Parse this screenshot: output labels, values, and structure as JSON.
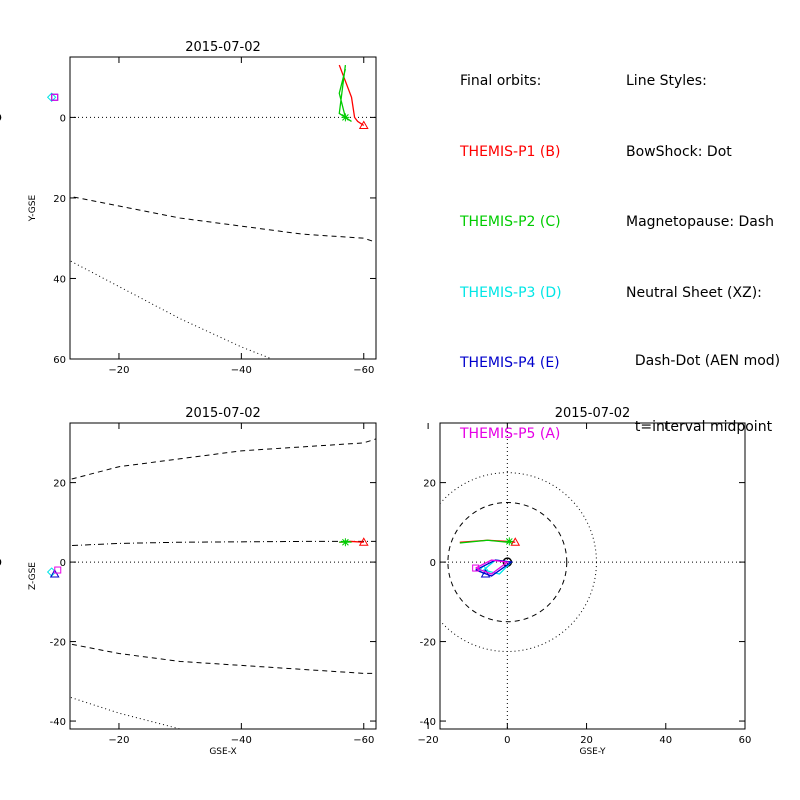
{
  "colors": {
    "P1": "#ff0000",
    "P2": "#00cc00",
    "P3": "#00e6e6",
    "P4": "#0000cc",
    "P5": "#e600e6"
  },
  "legend": {
    "orbits_title": "Final orbits:",
    "orbits": [
      {
        "label": "THEMIS-P1 (B)",
        "color": "#ff0000"
      },
      {
        "label": "THEMIS-P2 (C)",
        "color": "#00cc00"
      },
      {
        "label": "THEMIS-P3 (D)",
        "color": "#00e6e6"
      },
      {
        "label": "THEMIS-P4 (E)",
        "color": "#0000cc"
      },
      {
        "label": "THEMIS-P5 (A)",
        "color": "#e600e6"
      }
    ],
    "styles_title": "Line Styles:",
    "styles": [
      "BowShock: Dot",
      "Magnetopause: Dash",
      "Neutral Sheet (XZ):",
      "  Dash-Dot (AEN mod)",
      "  t=interval midpoint"
    ]
  },
  "chart_data": [
    {
      "type": "line",
      "title": "2015-07-02",
      "xlabel": "",
      "ylabel": "Y-GSE",
      "xlim": [
        -12,
        -62
      ],
      "ylim": [
        -15,
        60
      ],
      "xticks": [
        0,
        -20,
        -40,
        -60
      ],
      "yticks": [
        0,
        20,
        40,
        60
      ],
      "boundaries": [
        {
          "style": "dot",
          "x": [
            -10,
            -5,
            0,
            -10,
            -20,
            -30,
            -40,
            -45
          ],
          "y": [
            -15,
            -8,
            27,
            34,
            42,
            50,
            57,
            60
          ]
        },
        {
          "style": "dash",
          "x": [
            -10,
            -7,
            -1,
            0,
            -10,
            -20,
            -30,
            -40,
            -50,
            -60,
            -62
          ],
          "y": [
            -15,
            -6,
            14,
            15,
            19,
            22,
            25,
            27,
            29,
            30,
            31
          ]
        },
        {
          "style": "dot",
          "x": [
            0,
            0
          ],
          "y": [
            -15,
            60
          ]
        },
        {
          "style": "dot",
          "x": [
            -12,
            -62
          ],
          "y": [
            0,
            0
          ]
        }
      ],
      "series": [
        {
          "name": "P1",
          "color": "#ff0000",
          "x": [
            -56,
            -58,
            -58.5,
            -59,
            -60
          ],
          "y": [
            -13,
            -5,
            0,
            1,
            2
          ],
          "marker": "triangle",
          "end": [
            -60,
            2
          ]
        },
        {
          "name": "P2",
          "color": "#00cc00",
          "x": [
            -57,
            -56,
            -57,
            -58,
            -56,
            -57
          ],
          "y": [
            -12,
            -6,
            0,
            1,
            -1,
            -13
          ],
          "marker": "star",
          "end": [
            -57,
            0
          ]
        },
        {
          "name": "P3",
          "color": "#00e6e6",
          "x": [
            -9,
            -7,
            0,
            -6,
            -9
          ],
          "y": [
            -5,
            -8,
            0,
            4,
            -5
          ],
          "marker": "diamond",
          "end": [
            -9,
            -5
          ]
        },
        {
          "name": "P4",
          "color": "#0000cc",
          "x": [
            -9,
            -5,
            1,
            -3,
            -9
          ],
          "y": [
            -6,
            -9,
            0,
            5,
            -6
          ],
          "marker": "square",
          "end": [
            -9.5,
            -5
          ]
        },
        {
          "name": "P5",
          "color": "#e600e6",
          "x": [
            -9.5,
            -7,
            0,
            -6,
            -9.5
          ],
          "y": [
            -5,
            -8,
            0,
            4,
            -5
          ],
          "marker": "square",
          "end": [
            -9.5,
            -5
          ]
        }
      ]
    },
    {
      "type": "line",
      "title": "2015-07-02",
      "xlabel": "GSE-X",
      "ylabel": "Z-GSE",
      "xlim": [
        -12,
        -62
      ],
      "ylim": [
        35,
        -42
      ],
      "xticks": [
        0,
        -20,
        -40,
        -60
      ],
      "yticks": [
        20,
        0,
        -20,
        -40
      ],
      "boundaries": [
        {
          "style": "dot",
          "x": [
            -12,
            -5,
            0,
            5,
            7
          ],
          "y": [
            5,
            20,
            27,
            33,
            35
          ]
        },
        {
          "style": "dot",
          "x": [
            -12,
            -5,
            0,
            -10,
            -20,
            -30
          ],
          "y": [
            -5,
            -22,
            -27,
            -33,
            -38,
            -42
          ]
        },
        {
          "style": "dash",
          "x": [
            -10,
            -5,
            0,
            -10,
            -20,
            -30,
            -40,
            -50,
            -60,
            -62
          ],
          "y": [
            5,
            12,
            15,
            20,
            24,
            26,
            28,
            29,
            30,
            31
          ]
        },
        {
          "style": "dash",
          "x": [
            -10,
            -5,
            0,
            -10,
            -20,
            -30,
            -40,
            -50,
            -60,
            -62
          ],
          "y": [
            -5,
            -12,
            -15,
            -20,
            -23,
            -25,
            -26,
            -27,
            -28,
            -28
          ]
        },
        {
          "style": "dashdot",
          "x": [
            0,
            -5,
            -10,
            -20,
            -30,
            -40,
            -50,
            -60,
            -62
          ],
          "y": [
            0,
            3,
            4,
            4.7,
            5,
            5.1,
            5.2,
            5.2,
            5.2
          ]
        },
        {
          "style": "dot",
          "x": [
            0,
            0
          ],
          "y": [
            35,
            -42
          ]
        },
        {
          "style": "dot",
          "x": [
            -12,
            -62
          ],
          "y": [
            0,
            0
          ]
        }
      ],
      "series": [
        {
          "name": "P1",
          "color": "#ff0000",
          "x": [
            -56,
            -58,
            -60
          ],
          "y": [
            5,
            5.2,
            5
          ],
          "marker": "triangle",
          "end": [
            -60,
            5
          ]
        },
        {
          "name": "P2",
          "color": "#00cc00",
          "x": [
            -56,
            -57,
            -58
          ],
          "y": [
            5,
            5.3,
            5
          ],
          "marker": "star",
          "end": [
            -57,
            5
          ]
        },
        {
          "name": "P3",
          "color": "#00e6e6",
          "x": [
            -9,
            -5,
            0
          ],
          "y": [
            -2.5,
            -1,
            0
          ],
          "marker": "diamond",
          "end": [
            -9,
            -2.5
          ]
        },
        {
          "name": "P4",
          "color": "#0000cc",
          "x": [
            -9.5,
            -5,
            0,
            -5,
            -9.5
          ],
          "y": [
            -3,
            -2,
            0,
            -1,
            -3
          ],
          "marker": "triangle",
          "end": [
            -9.5,
            -3
          ]
        },
        {
          "name": "P5",
          "color": "#e600e6",
          "x": [
            -10,
            -5,
            0,
            -5,
            -10
          ],
          "y": [
            -2,
            -1,
            0.5,
            0,
            -2
          ],
          "marker": "square",
          "end": [
            -10,
            -2
          ]
        }
      ]
    },
    {
      "type": "line",
      "title": "2015-07-02",
      "xlabel": "GSE-Y",
      "ylabel": "",
      "xlim": [
        -17,
        60
      ],
      "ylim": [
        35,
        -42
      ],
      "xticks": [
        -20,
        0,
        20,
        40,
        60
      ],
      "yticks": [
        20,
        0,
        -20,
        -40
      ],
      "boundaries": [
        {
          "style": "dot",
          "circle": [
            0,
            0,
            22.5
          ]
        },
        {
          "style": "dash",
          "circle": [
            0,
            0,
            15
          ]
        },
        {
          "style": "dot",
          "x": [
            0,
            0
          ],
          "y": [
            35,
            -42
          ]
        },
        {
          "style": "dot",
          "x": [
            -17,
            60
          ],
          "y": [
            0,
            0
          ]
        }
      ],
      "series": [
        {
          "name": "P1",
          "color": "#ff0000",
          "x": [
            -12,
            -5,
            0,
            2
          ],
          "y": [
            5,
            5.5,
            5.2,
            5
          ],
          "marker": "triangle",
          "end": [
            2,
            5
          ]
        },
        {
          "name": "P2",
          "color": "#00cc00",
          "x": [
            -12,
            -5,
            0,
            1
          ],
          "y": [
            4.8,
            5.5,
            5,
            5.2
          ],
          "marker": "star",
          "end": [
            0.5,
            5.2
          ]
        },
        {
          "name": "P3",
          "color": "#00e6e6",
          "x": [
            -6,
            -2,
            1,
            -3,
            -6
          ],
          "y": [
            -2,
            -3,
            0,
            0.5,
            -2
          ],
          "marker": "diamond",
          "end": [
            -6,
            -2
          ]
        },
        {
          "name": "P4",
          "color": "#0000cc",
          "x": [
            -8,
            -4,
            1,
            -3,
            -8
          ],
          "y": [
            -2,
            -3.5,
            0,
            0.5,
            -2
          ],
          "marker": "triangle",
          "end": [
            -5.5,
            -3
          ]
        },
        {
          "name": "P5",
          "color": "#e600e6",
          "x": [
            -8,
            -4,
            0,
            -4,
            -8
          ],
          "y": [
            -1.5,
            -3,
            0,
            0.5,
            -1.5
          ],
          "marker": "square",
          "end": [
            -8,
            -1.5
          ]
        }
      ]
    }
  ]
}
